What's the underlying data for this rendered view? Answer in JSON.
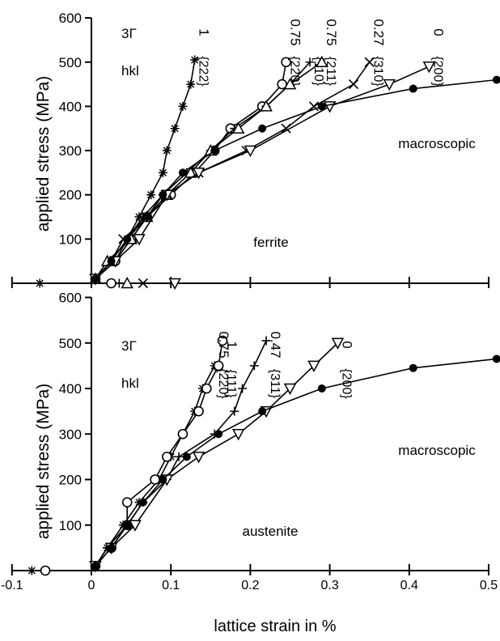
{
  "chart_data": [
    {
      "panel": "ferrite",
      "type": "line",
      "label": "ferrite",
      "ylabel": "applied stress (MPa)",
      "ylim": [
        0,
        600
      ],
      "yticks": [
        100,
        200,
        300,
        400,
        500,
        600
      ],
      "xlim": [
        -0.1,
        0.5
      ],
      "xticks": [
        -0.1,
        0,
        0.1,
        0.2,
        0.3,
        0.4,
        0.5
      ],
      "header_row1_label": "3Γ",
      "header_row2_label": "hkl",
      "macroscopic_label": "macroscopic",
      "series": [
        {
          "hkl": "{222}",
          "gamma": "1",
          "marker": "asterisk",
          "points": [
            [
              0.005,
              10
            ],
            [
              0.03,
              50
            ],
            [
              0.045,
              100
            ],
            [
              0.06,
              150
            ],
            [
              0.075,
              200
            ],
            [
              0.09,
              250
            ],
            [
              0.095,
              300
            ],
            [
              0.105,
              350
            ],
            [
              0.115,
              400
            ],
            [
              0.125,
              450
            ],
            [
              0.13,
              505
            ]
          ],
          "unloaded_strain": -0.065
        },
        {
          "hkl": "{220}",
          "gamma": "0.75",
          "marker": "circle",
          "points": [
            [
              0.005,
              10
            ],
            [
              0.03,
              50
            ],
            [
              0.05,
              100
            ],
            [
              0.07,
              150
            ],
            [
              0.1,
              200
            ],
            [
              0.13,
              250
            ],
            [
              0.155,
              300
            ],
            [
              0.175,
              350
            ],
            [
              0.215,
              400
            ],
            [
              0.24,
              450
            ],
            [
              0.245,
              500
            ]
          ],
          "unloaded_strain": 0.025
        },
        {
          "hkl": "{110}",
          "gamma": "0.75",
          "marker": "plus",
          "points": [
            [
              0.005,
              10
            ],
            [
              0.025,
              50
            ],
            [
              0.045,
              100
            ],
            [
              0.065,
              150
            ],
            [
              0.09,
              200
            ],
            [
              0.12,
              250
            ],
            [
              0.15,
              300
            ],
            [
              0.18,
              350
            ],
            [
              0.22,
              400
            ],
            [
              0.25,
              450
            ],
            [
              0.275,
              500
            ]
          ],
          "unloaded_strain": 0.035
        },
        {
          "hkl": "{211}",
          "gamma": "0.75",
          "marker": "triangle-up",
          "points": [
            [
              0.005,
              10
            ],
            [
              0.02,
              50
            ],
            [
              0.05,
              100
            ],
            [
              0.07,
              150
            ],
            [
              0.095,
              200
            ],
            [
              0.125,
              250
            ],
            [
              0.15,
              300
            ],
            [
              0.185,
              350
            ],
            [
              0.22,
              400
            ],
            [
              0.25,
              450
            ],
            [
              0.29,
              500
            ]
          ],
          "unloaded_strain": 0.045
        },
        {
          "hkl": "{310}",
          "gamma": "0.27",
          "marker": "x",
          "points": [
            [
              0.005,
              10
            ],
            [
              0.025,
              50
            ],
            [
              0.04,
              100
            ],
            [
              0.07,
              150
            ],
            [
              0.095,
              200
            ],
            [
              0.135,
              250
            ],
            [
              0.195,
              300
            ],
            [
              0.245,
              350
            ],
            [
              0.28,
              400
            ],
            [
              0.33,
              450
            ],
            [
              0.35,
              500
            ]
          ],
          "unloaded_strain": 0.065
        },
        {
          "hkl": "{200}",
          "gamma": "0",
          "marker": "triangle-down",
          "points": [
            [
              0.005,
              10
            ],
            [
              0.03,
              50
            ],
            [
              0.06,
              100
            ],
            [
              0.095,
              200
            ],
            [
              0.135,
              250
            ],
            [
              0.2,
              300
            ],
            [
              0.3,
              400
            ],
            [
              0.375,
              450
            ],
            [
              0.425,
              490
            ]
          ],
          "unloaded_strain": 0.105
        },
        {
          "hkl": "macroscopic",
          "gamma": "",
          "marker": "filled-circle",
          "points": [
            [
              0.005,
              10
            ],
            [
              0.025,
              50
            ],
            [
              0.045,
              100
            ],
            [
              0.07,
              150
            ],
            [
              0.09,
              200
            ],
            [
              0.115,
              250
            ],
            [
              0.155,
              300
            ],
            [
              0.215,
              350
            ],
            [
              0.29,
              400
            ],
            [
              0.405,
              440
            ],
            [
              0.51,
              460
            ]
          ]
        }
      ]
    },
    {
      "panel": "austenite",
      "type": "line",
      "label": "austenite",
      "ylabel": "applied stress (MPa)",
      "xlabel": "lattice strain in %",
      "ylim": [
        0,
        600
      ],
      "yticks": [
        100,
        200,
        300,
        400,
        500,
        600
      ],
      "xlim": [
        -0.1,
        0.5
      ],
      "xticks": [
        -0.1,
        0,
        0.1,
        0.2,
        0.3,
        0.4,
        0.5
      ],
      "xtick_labels": [
        "-0.1",
        "0",
        "0.1",
        "0.2",
        "0.3",
        "0.4",
        "0.5"
      ],
      "header_row1_label": "3Γ",
      "header_row2_label": "hkl",
      "macroscopic_label": "macroscopic",
      "series": [
        {
          "hkl": "{220}",
          "gamma": "0.75",
          "marker": "asterisk",
          "points": [
            [
              0.005,
              10
            ],
            [
              0.02,
              50
            ],
            [
              0.04,
              100
            ],
            [
              0.06,
              150
            ],
            [
              0.085,
              200
            ],
            [
              0.1,
              250
            ],
            [
              0.115,
              300
            ],
            [
              0.13,
              350
            ],
            [
              0.14,
              400
            ],
            [
              0.155,
              450
            ]
          ],
          "unloaded_strain": -0.075
        },
        {
          "hkl": "{111}",
          "gamma": "1",
          "marker": "circle",
          "points": [
            [
              0.005,
              10
            ],
            [
              0.025,
              50
            ],
            [
              0.045,
              100
            ],
            [
              0.045,
              150
            ],
            [
              0.08,
              200
            ],
            [
              0.095,
              250
            ],
            [
              0.115,
              300
            ],
            [
              0.135,
              350
            ],
            [
              0.145,
              400
            ],
            [
              0.16,
              450
            ],
            [
              0.165,
              505
            ]
          ],
          "unloaded_strain": -0.058
        },
        {
          "hkl": "{311}",
          "gamma": "0.47",
          "marker": "plus",
          "points": [
            [
              0.005,
              10
            ],
            [
              0.02,
              50
            ],
            [
              0.045,
              100
            ],
            [
              0.065,
              150
            ],
            [
              0.095,
              200
            ],
            [
              0.11,
              250
            ],
            [
              0.155,
              300
            ],
            [
              0.18,
              350
            ],
            [
              0.19,
              400
            ],
            [
              0.205,
              450
            ],
            [
              0.22,
              505
            ]
          ],
          "unloaded_strain": null
        },
        {
          "hkl": "{200}",
          "gamma": "0",
          "marker": "triangle-down",
          "points": [
            [
              0.005,
              10
            ],
            [
              0.025,
              50
            ],
            [
              0.055,
              100
            ],
            [
              0.095,
              200
            ],
            [
              0.135,
              250
            ],
            [
              0.185,
              300
            ],
            [
              0.22,
              350
            ],
            [
              0.25,
              400
            ],
            [
              0.28,
              450
            ],
            [
              0.31,
              500
            ]
          ],
          "unloaded_strain": null
        },
        {
          "hkl": "macroscopic",
          "gamma": "",
          "marker": "filled-circle",
          "points": [
            [
              0.005,
              10
            ],
            [
              0.025,
              50
            ],
            [
              0.045,
              100
            ],
            [
              0.065,
              150
            ],
            [
              0.09,
              200
            ],
            [
              0.12,
              250
            ],
            [
              0.16,
              300
            ],
            [
              0.215,
              350
            ],
            [
              0.29,
              400
            ],
            [
              0.405,
              445
            ],
            [
              0.51,
              465
            ]
          ]
        }
      ]
    }
  ]
}
